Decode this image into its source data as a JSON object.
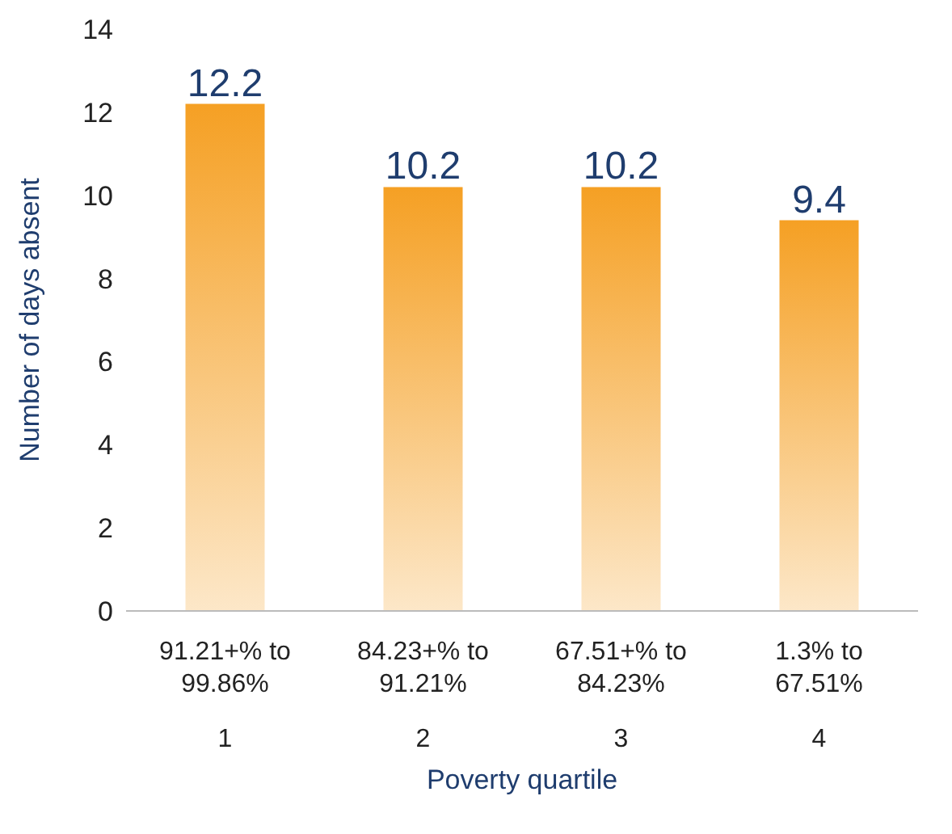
{
  "chart_data": {
    "type": "bar",
    "xlabel": "Poverty quartile",
    "ylabel": "Number of days absent",
    "categories": [
      "91.21+% to\n99.86%\n1",
      "84.23+% to\n91.21%\n2",
      "67.51+% to\n84.23%\n3",
      "1.3% to\n67.51%\n4"
    ],
    "values": [
      12.2,
      10.2,
      10.2,
      9.4
    ],
    "color": "#f5a024",
    "ylim": [
      0,
      14
    ],
    "yticks": [
      0,
      2,
      4,
      6,
      8,
      10,
      12,
      14
    ],
    "grid": false,
    "data_labels": true
  }
}
